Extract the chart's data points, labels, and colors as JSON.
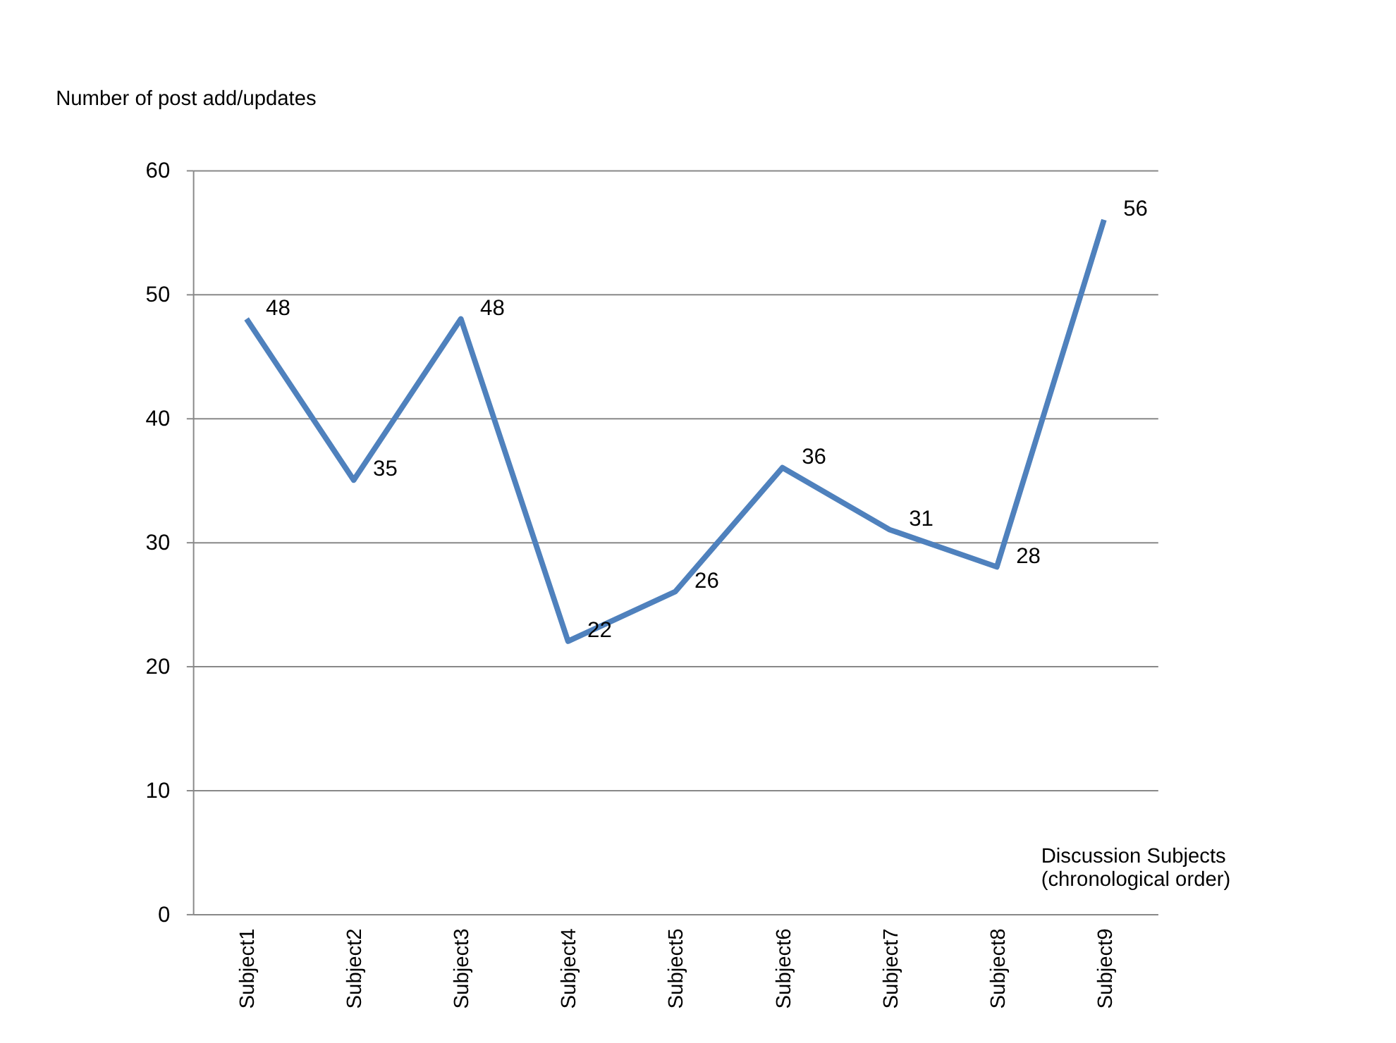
{
  "chart_data": {
    "type": "line",
    "ylabel": "Number of post add/updates",
    "xlabel": "Discussion Subjects\n(chronological order)",
    "categories": [
      "Subject1",
      "Subject2",
      "Subject3",
      "Subject4",
      "Subject5",
      "Subject6",
      "Subject7",
      "Subject8",
      "Subject9"
    ],
    "series": [
      {
        "color": "#4f81bd",
        "values": [
          48,
          35,
          48,
          22,
          26,
          36,
          31,
          28,
          56
        ]
      }
    ],
    "ylim": [
      0,
      60
    ],
    "yticks": [
      0,
      10,
      20,
      30,
      40,
      50,
      60
    ],
    "grid": "y",
    "data_labels": true,
    "marker": "none",
    "line_style": "solid"
  }
}
